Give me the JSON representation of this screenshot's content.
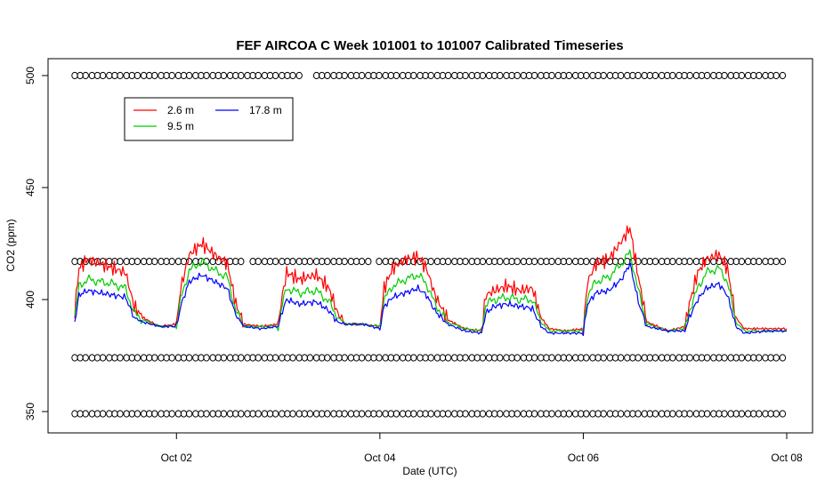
{
  "chart_data": {
    "type": "line",
    "title": "FEF AIRCOA C  Week 101001 to 101007  Calibrated Timeseries",
    "xlabel": "Date (UTC)",
    "ylabel": "CO2 (ppm)",
    "xlim": [
      "2010-10-01",
      "2010-10-08"
    ],
    "ylim": [
      340,
      505
    ],
    "x_ticks": [
      {
        "date": "2010-10-02",
        "label": "Oct 02"
      },
      {
        "date": "2010-10-04",
        "label": "Oct 04"
      },
      {
        "date": "2010-10-06",
        "label": "Oct 06"
      },
      {
        "date": "2010-10-08",
        "label": "Oct 08"
      }
    ],
    "y_ticks": [
      350,
      400,
      450,
      500
    ],
    "grid": false,
    "legend": {
      "placement": "top-left",
      "entries": [
        {
          "name": "2.6 m",
          "color": "#ff0000"
        },
        {
          "name": "9.5 m",
          "color": "#00cc00"
        },
        {
          "name": "17.8 m",
          "color": "#0000ff"
        }
      ]
    },
    "series": [
      {
        "name": "2.6 m",
        "color": "#ff0000",
        "points": [
          [
            "2010-10-01 00:00",
            395
          ],
          [
            "2010-10-01 01:00",
            414
          ],
          [
            "2010-10-01 03:00",
            418
          ],
          [
            "2010-10-01 06:00",
            416
          ],
          [
            "2010-10-01 09:00",
            414
          ],
          [
            "2010-10-01 12:00",
            412
          ],
          [
            "2010-10-01 14:00",
            397
          ],
          [
            "2010-10-01 16:00",
            392
          ],
          [
            "2010-10-01 20:00",
            388
          ],
          [
            "2010-10-02 00:00",
            389
          ],
          [
            "2010-10-02 01:00",
            405
          ],
          [
            "2010-10-02 03:00",
            420
          ],
          [
            "2010-10-02 06:00",
            425
          ],
          [
            "2010-10-02 09:00",
            420
          ],
          [
            "2010-10-02 12:00",
            416
          ],
          [
            "2010-10-02 14:00",
            398
          ],
          [
            "2010-10-02 16:00",
            389
          ],
          [
            "2010-10-02 20:00",
            388
          ],
          [
            "2010-10-03 00:00",
            389
          ],
          [
            "2010-10-03 01:00",
            402
          ],
          [
            "2010-10-03 02:00",
            412
          ],
          [
            "2010-10-03 05:00",
            409
          ],
          [
            "2010-10-03 09:00",
            411
          ],
          [
            "2010-10-03 12:00",
            405
          ],
          [
            "2010-10-03 14:00",
            394
          ],
          [
            "2010-10-03 16:00",
            389
          ],
          [
            "2010-10-03 20:00",
            389
          ],
          [
            "2010-10-04 00:00",
            388
          ],
          [
            "2010-10-04 01:00",
            405
          ],
          [
            "2010-10-04 03:00",
            414
          ],
          [
            "2010-10-04 06:00",
            418
          ],
          [
            "2010-10-04 09:00",
            419
          ],
          [
            "2010-10-04 11:00",
            414
          ],
          [
            "2010-10-04 13:00",
            402
          ],
          [
            "2010-10-04 16:00",
            391
          ],
          [
            "2010-10-04 20:00",
            387
          ],
          [
            "2010-10-05 00:00",
            386
          ],
          [
            "2010-10-05 01:00",
            402
          ],
          [
            "2010-10-05 03:00",
            404
          ],
          [
            "2010-10-05 06:00",
            406
          ],
          [
            "2010-10-05 09:00",
            404
          ],
          [
            "2010-10-05 12:00",
            405
          ],
          [
            "2010-10-05 14:00",
            392
          ],
          [
            "2010-10-05 16:00",
            387
          ],
          [
            "2010-10-05 20:00",
            386
          ],
          [
            "2010-10-06 00:00",
            387
          ],
          [
            "2010-10-06 01:00",
            408
          ],
          [
            "2010-10-06 03:00",
            416
          ],
          [
            "2010-10-06 06:00",
            418
          ],
          [
            "2010-10-06 09:00",
            426
          ],
          [
            "2010-10-06 11:00",
            432
          ],
          [
            "2010-10-06 13:00",
            410
          ],
          [
            "2010-10-06 15:00",
            390
          ],
          [
            "2010-10-06 20:00",
            386
          ],
          [
            "2010-10-07 00:00",
            388
          ],
          [
            "2010-10-07 01:00",
            398
          ],
          [
            "2010-10-07 03:00",
            412
          ],
          [
            "2010-10-07 05:00",
            418
          ],
          [
            "2010-10-07 08:00",
            420
          ],
          [
            "2010-10-07 10:00",
            414
          ],
          [
            "2010-10-07 12:00",
            392
          ],
          [
            "2010-10-07 14:00",
            387
          ],
          [
            "2010-10-07 20:00",
            387
          ],
          [
            "2010-10-08 00:00",
            387
          ]
        ]
      },
      {
        "name": "9.5 m",
        "color": "#00cc00",
        "points": [
          [
            "2010-10-01 00:00",
            392
          ],
          [
            "2010-10-01 01:00",
            406
          ],
          [
            "2010-10-01 03:00",
            409
          ],
          [
            "2010-10-01 06:00",
            408
          ],
          [
            "2010-10-01 09:00",
            407
          ],
          [
            "2010-10-01 12:00",
            405
          ],
          [
            "2010-10-01 14:00",
            394
          ],
          [
            "2010-10-01 16:00",
            391
          ],
          [
            "2010-10-01 20:00",
            388
          ],
          [
            "2010-10-02 00:00",
            388
          ],
          [
            "2010-10-02 01:00",
            400
          ],
          [
            "2010-10-02 03:00",
            413
          ],
          [
            "2010-10-02 06:00",
            417
          ],
          [
            "2010-10-02 09:00",
            413
          ],
          [
            "2010-10-02 12:00",
            410
          ],
          [
            "2010-10-02 14:00",
            395
          ],
          [
            "2010-10-02 16:00",
            388
          ],
          [
            "2010-10-02 20:00",
            388
          ],
          [
            "2010-10-03 00:00",
            388
          ],
          [
            "2010-10-03 01:00",
            398
          ],
          [
            "2010-10-03 02:00",
            405
          ],
          [
            "2010-10-03 05:00",
            403
          ],
          [
            "2010-10-03 09:00",
            404
          ],
          [
            "2010-10-03 12:00",
            399
          ],
          [
            "2010-10-03 14:00",
            392
          ],
          [
            "2010-10-03 16:00",
            389
          ],
          [
            "2010-10-03 20:00",
            389
          ],
          [
            "2010-10-04 00:00",
            388
          ],
          [
            "2010-10-04 01:00",
            400
          ],
          [
            "2010-10-04 03:00",
            406
          ],
          [
            "2010-10-04 06:00",
            409
          ],
          [
            "2010-10-04 09:00",
            411
          ],
          [
            "2010-10-04 11:00",
            407
          ],
          [
            "2010-10-04 13:00",
            398
          ],
          [
            "2010-10-04 16:00",
            390
          ],
          [
            "2010-10-04 20:00",
            387
          ],
          [
            "2010-10-05 00:00",
            386
          ],
          [
            "2010-10-05 01:00",
            398
          ],
          [
            "2010-10-05 03:00",
            400
          ],
          [
            "2010-10-05 06:00",
            401
          ],
          [
            "2010-10-05 09:00",
            400
          ],
          [
            "2010-10-05 12:00",
            400
          ],
          [
            "2010-10-05 14:00",
            390
          ],
          [
            "2010-10-05 16:00",
            386
          ],
          [
            "2010-10-05 20:00",
            386
          ],
          [
            "2010-10-06 00:00",
            386
          ],
          [
            "2010-10-06 01:00",
            402
          ],
          [
            "2010-10-06 03:00",
            408
          ],
          [
            "2010-10-06 06:00",
            410
          ],
          [
            "2010-10-06 09:00",
            416
          ],
          [
            "2010-10-06 11:00",
            421
          ],
          [
            "2010-10-06 13:00",
            404
          ],
          [
            "2010-10-06 15:00",
            389
          ],
          [
            "2010-10-06 20:00",
            386
          ],
          [
            "2010-10-07 00:00",
            387
          ],
          [
            "2010-10-07 01:00",
            395
          ],
          [
            "2010-10-07 03:00",
            405
          ],
          [
            "2010-10-07 05:00",
            412
          ],
          [
            "2010-10-07 08:00",
            414
          ],
          [
            "2010-10-07 10:00",
            408
          ],
          [
            "2010-10-07 12:00",
            390
          ],
          [
            "2010-10-07 14:00",
            386
          ],
          [
            "2010-10-07 20:00",
            386
          ],
          [
            "2010-10-08 00:00",
            386
          ]
        ]
      },
      {
        "name": "17.8 m",
        "color": "#0000ff",
        "points": [
          [
            "2010-10-01 00:00",
            390
          ],
          [
            "2010-10-01 01:00",
            402
          ],
          [
            "2010-10-01 03:00",
            404
          ],
          [
            "2010-10-01 06:00",
            403
          ],
          [
            "2010-10-01 09:00",
            402
          ],
          [
            "2010-10-01 12:00",
            401
          ],
          [
            "2010-10-01 14:00",
            392
          ],
          [
            "2010-10-01 16:00",
            390
          ],
          [
            "2010-10-01 20:00",
            388
          ],
          [
            "2010-10-02 00:00",
            388
          ],
          [
            "2010-10-02 01:00",
            397
          ],
          [
            "2010-10-02 03:00",
            408
          ],
          [
            "2010-10-02 06:00",
            411
          ],
          [
            "2010-10-02 09:00",
            408
          ],
          [
            "2010-10-02 12:00",
            405
          ],
          [
            "2010-10-02 14:00",
            393
          ],
          [
            "2010-10-02 16:00",
            388
          ],
          [
            "2010-10-02 20:00",
            387
          ],
          [
            "2010-10-03 00:00",
            388
          ],
          [
            "2010-10-03 01:00",
            395
          ],
          [
            "2010-10-03 02:00",
            400
          ],
          [
            "2010-10-03 05:00",
            398
          ],
          [
            "2010-10-03 09:00",
            399
          ],
          [
            "2010-10-03 12:00",
            395
          ],
          [
            "2010-10-03 14:00",
            390
          ],
          [
            "2010-10-03 16:00",
            389
          ],
          [
            "2010-10-03 20:00",
            389
          ],
          [
            "2010-10-04 00:00",
            387
          ],
          [
            "2010-10-04 01:00",
            397
          ],
          [
            "2010-10-04 03:00",
            401
          ],
          [
            "2010-10-04 06:00",
            403
          ],
          [
            "2010-10-04 09:00",
            405
          ],
          [
            "2010-10-04 11:00",
            402
          ],
          [
            "2010-10-04 13:00",
            395
          ],
          [
            "2010-10-04 16:00",
            389
          ],
          [
            "2010-10-04 20:00",
            386
          ],
          [
            "2010-10-05 00:00",
            385
          ],
          [
            "2010-10-05 01:00",
            394
          ],
          [
            "2010-10-05 03:00",
            397
          ],
          [
            "2010-10-05 06:00",
            398
          ],
          [
            "2010-10-05 09:00",
            397
          ],
          [
            "2010-10-05 12:00",
            396
          ],
          [
            "2010-10-05 14:00",
            388
          ],
          [
            "2010-10-05 16:00",
            385
          ],
          [
            "2010-10-05 20:00",
            385
          ],
          [
            "2010-10-06 00:00",
            385
          ],
          [
            "2010-10-06 01:00",
            398
          ],
          [
            "2010-10-06 03:00",
            403
          ],
          [
            "2010-10-06 06:00",
            404
          ],
          [
            "2010-10-06 09:00",
            409
          ],
          [
            "2010-10-06 11:00",
            416
          ],
          [
            "2010-10-06 13:00",
            399
          ],
          [
            "2010-10-06 15:00",
            388
          ],
          [
            "2010-10-06 20:00",
            386
          ],
          [
            "2010-10-07 00:00",
            386
          ],
          [
            "2010-10-07 01:00",
            392
          ],
          [
            "2010-10-07 03:00",
            400
          ],
          [
            "2010-10-07 05:00",
            405
          ],
          [
            "2010-10-07 08:00",
            407
          ],
          [
            "2010-10-07 10:00",
            402
          ],
          [
            "2010-10-07 12:00",
            388
          ],
          [
            "2010-10-07 14:00",
            385
          ],
          [
            "2010-10-07 20:00",
            386
          ],
          [
            "2010-10-08 00:00",
            386
          ]
        ]
      }
    ],
    "marker_rows": [
      {
        "y": 500,
        "marker": "open-circle",
        "x_start": "2010-10-01",
        "x_end": "2010-10-08"
      },
      {
        "y": 417,
        "marker": "open-circle",
        "x_start": "2010-10-01",
        "x_end": "2010-10-08"
      },
      {
        "y": 374,
        "marker": "open-circle",
        "x_start": "2010-10-01",
        "x_end": "2010-10-08"
      },
      {
        "y": 349,
        "marker": "open-circle",
        "x_start": "2010-10-01",
        "x_end": "2010-10-08"
      }
    ]
  }
}
